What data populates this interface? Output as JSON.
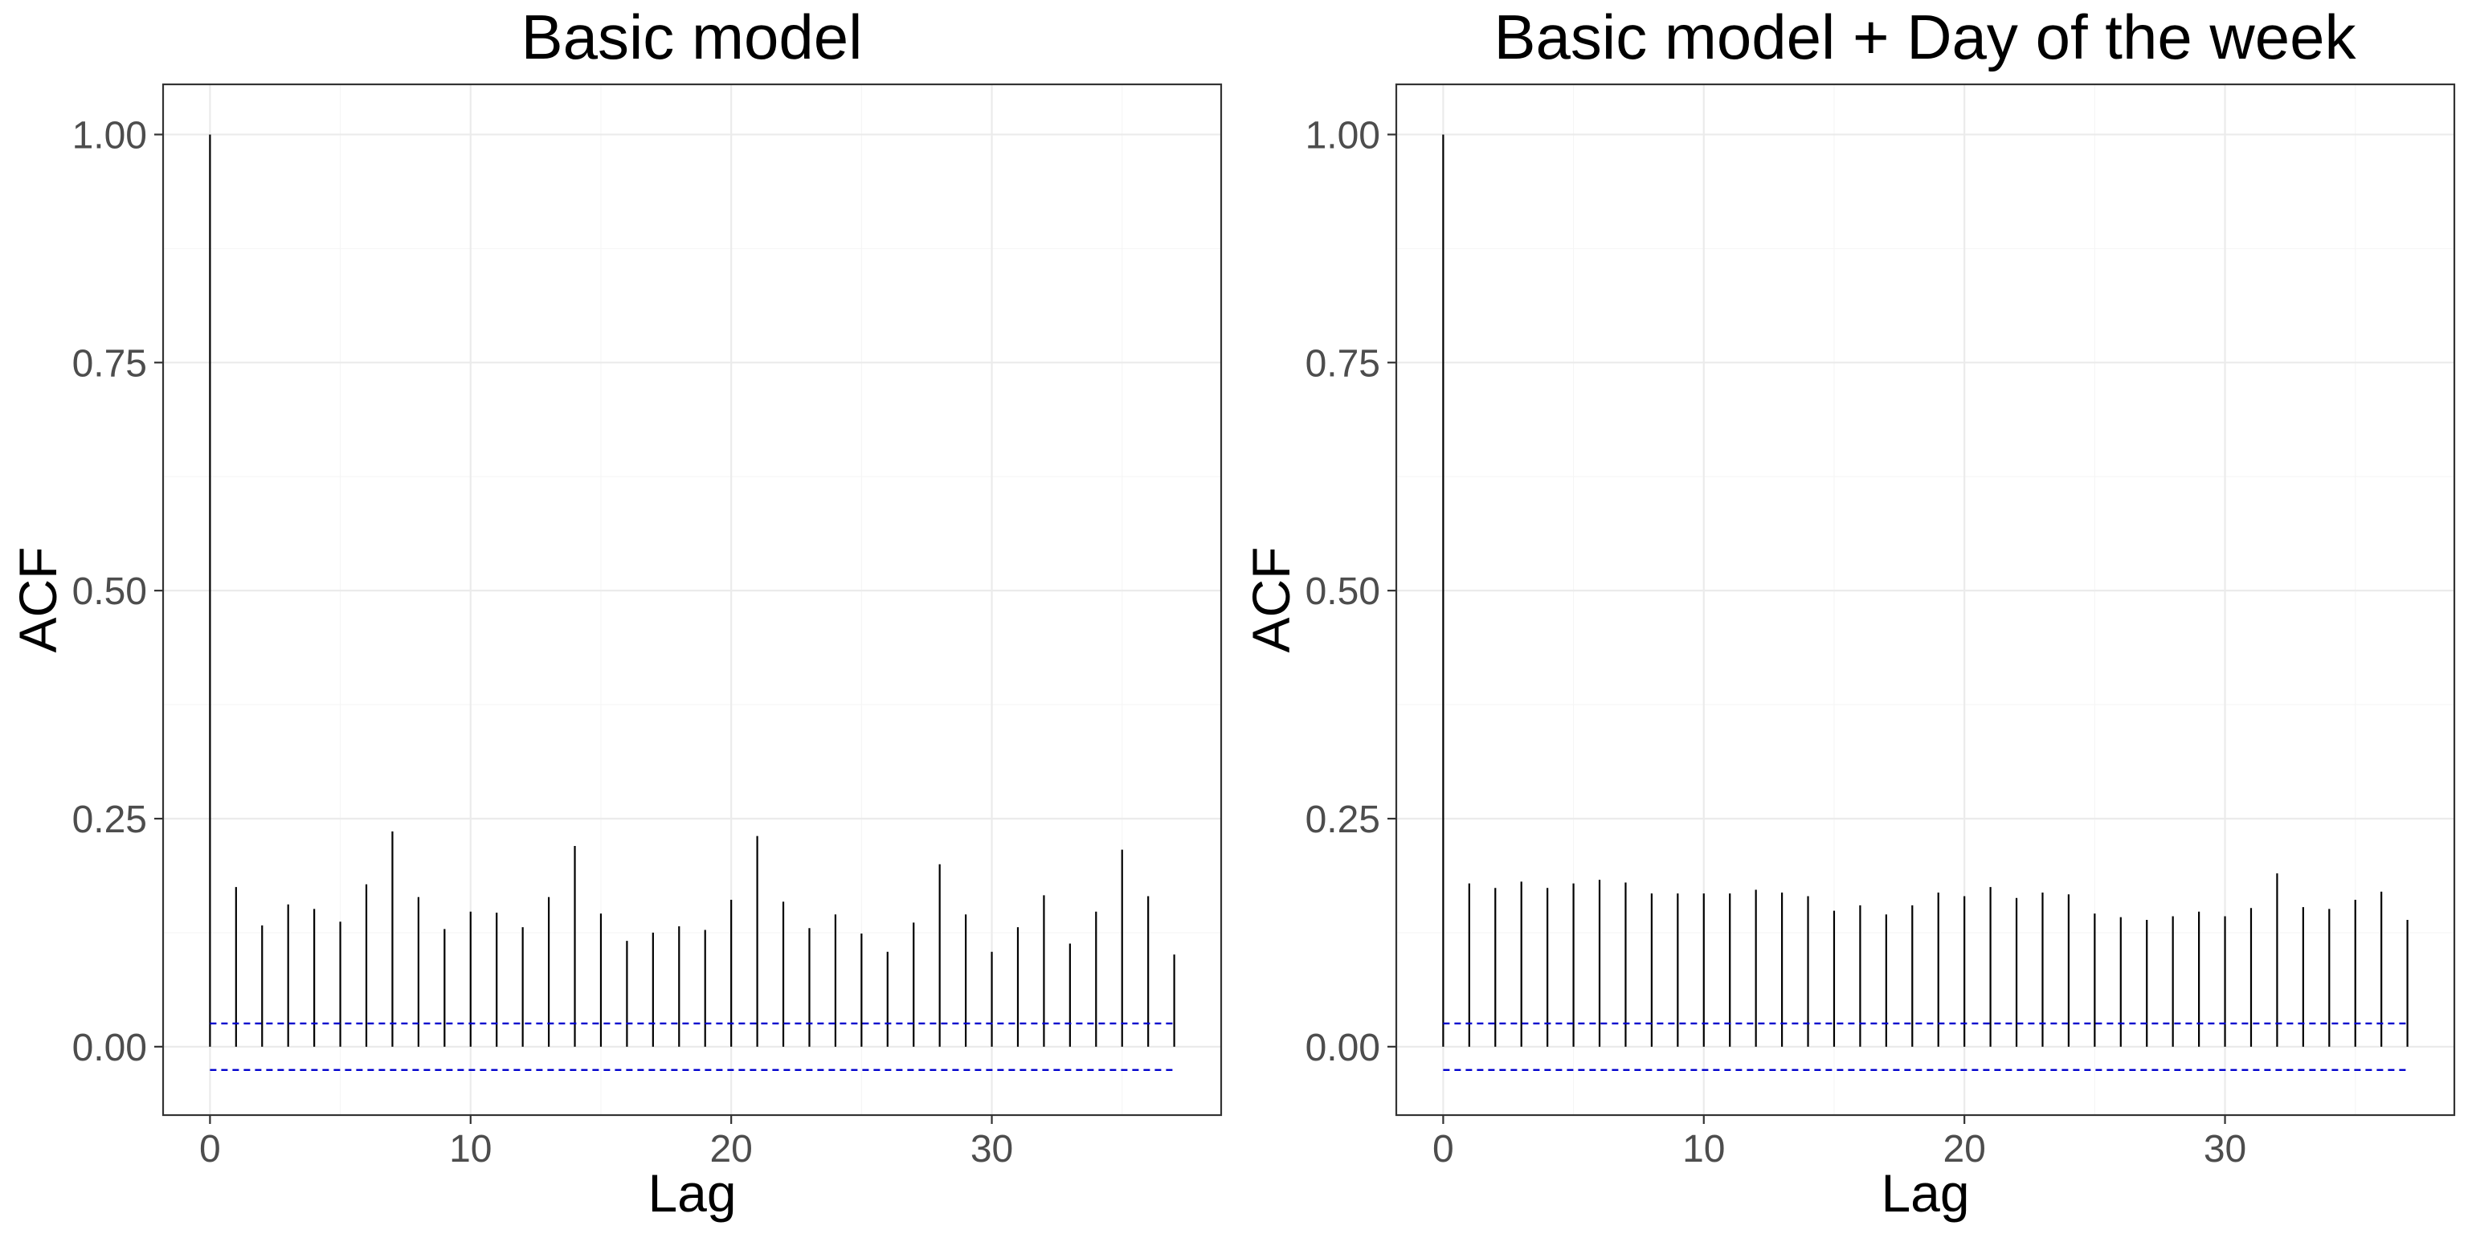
{
  "chart_data": [
    {
      "type": "bar",
      "title": "Basic model",
      "xlabel": "Lag",
      "ylabel": "ACF",
      "xlim": [
        -1.8,
        38.8
      ],
      "ylim": [
        -0.075,
        1.055
      ],
      "x_ticks": [
        0,
        10,
        20,
        30
      ],
      "y_ticks": [
        0.0,
        0.25,
        0.5,
        0.75,
        1.0
      ],
      "x_tick_labels": [
        "0",
        "10",
        "20",
        "30"
      ],
      "y_tick_labels": [
        "0.00",
        "0.25",
        "0.50",
        "0.75",
        "1.00"
      ],
      "grid": true,
      "lags": [
        0,
        1,
        2,
        3,
        4,
        5,
        6,
        7,
        8,
        9,
        10,
        11,
        12,
        13,
        14,
        15,
        16,
        17,
        18,
        19,
        20,
        21,
        22,
        23,
        24,
        25,
        26,
        27,
        28,
        29,
        30,
        31,
        32,
        33,
        34,
        35,
        36,
        37
      ],
      "values": [
        1.0,
        0.175,
        0.133,
        0.156,
        0.151,
        0.137,
        0.178,
        0.236,
        0.164,
        0.129,
        0.148,
        0.147,
        0.131,
        0.164,
        0.22,
        0.146,
        0.116,
        0.125,
        0.132,
        0.128,
        0.161,
        0.231,
        0.159,
        0.13,
        0.145,
        0.124,
        0.104,
        0.136,
        0.2,
        0.145,
        0.104,
        0.131,
        0.166,
        0.113,
        0.148,
        0.216,
        0.165,
        0.101
      ],
      "confidence_bound": 0.0255,
      "bar_color": "#000000",
      "ci_color": "#0000cd"
    },
    {
      "type": "bar",
      "title": "Basic model + Day of the week",
      "xlabel": "Lag",
      "ylabel": "ACF",
      "xlim": [
        -1.8,
        38.8
      ],
      "ylim": [
        -0.075,
        1.055
      ],
      "x_ticks": [
        0,
        10,
        20,
        30
      ],
      "y_ticks": [
        0.0,
        0.25,
        0.5,
        0.75,
        1.0
      ],
      "x_tick_labels": [
        "0",
        "10",
        "20",
        "30"
      ],
      "y_tick_labels": [
        "0.00",
        "0.25",
        "0.50",
        "0.75",
        "1.00"
      ],
      "grid": true,
      "lags": [
        0,
        1,
        2,
        3,
        4,
        5,
        6,
        7,
        8,
        9,
        10,
        11,
        12,
        13,
        14,
        15,
        16,
        17,
        18,
        19,
        20,
        21,
        22,
        23,
        24,
        25,
        26,
        27,
        28,
        29,
        30,
        31,
        32,
        33,
        34,
        35,
        36,
        37
      ],
      "values": [
        1.0,
        0.179,
        0.174,
        0.181,
        0.174,
        0.179,
        0.183,
        0.18,
        0.168,
        0.168,
        0.168,
        0.168,
        0.172,
        0.169,
        0.165,
        0.149,
        0.155,
        0.145,
        0.155,
        0.169,
        0.165,
        0.175,
        0.163,
        0.169,
        0.167,
        0.146,
        0.142,
        0.139,
        0.143,
        0.148,
        0.143,
        0.152,
        0.19,
        0.153,
        0.151,
        0.161,
        0.17,
        0.139
      ],
      "confidence_bound": 0.0255,
      "bar_color": "#000000",
      "ci_color": "#0000cd"
    }
  ]
}
